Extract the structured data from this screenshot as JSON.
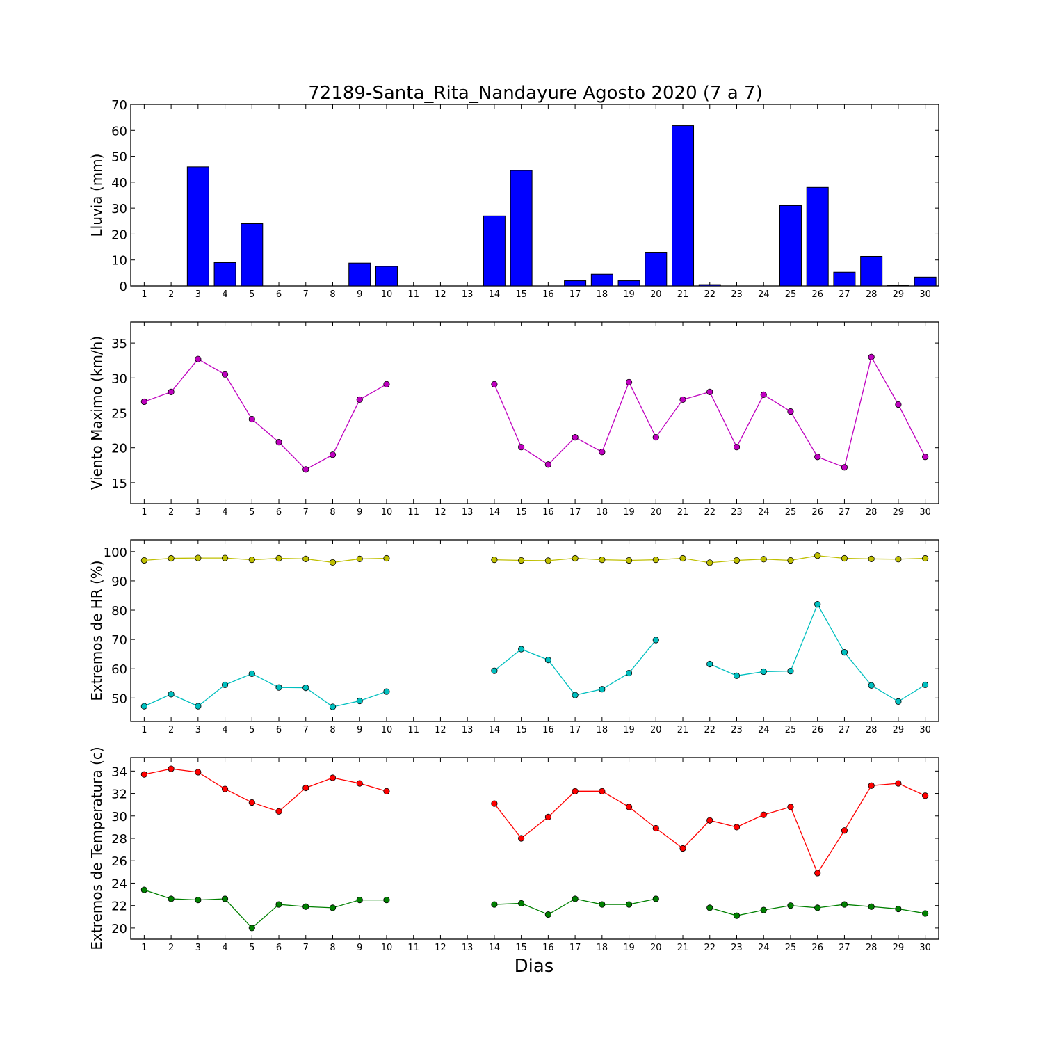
{
  "title": "72189-Santa_Rita_Nandayure Agosto 2020  (7 a 7)",
  "xlabel": "Dias",
  "chart_data": [
    {
      "type": "bar",
      "ylabel": "Lluvia (mm)",
      "ylim": [
        0,
        70
      ],
      "yticks": [
        0,
        10,
        20,
        30,
        40,
        50,
        60,
        70
      ],
      "categories": [
        1,
        2,
        3,
        4,
        5,
        6,
        7,
        8,
        9,
        10,
        11,
        12,
        13,
        14,
        15,
        16,
        17,
        18,
        19,
        20,
        21,
        22,
        23,
        24,
        25,
        26,
        27,
        28,
        29,
        30
      ],
      "series": [
        {
          "color": "#0000ff",
          "values": [
            0,
            0,
            45.9,
            9,
            24,
            0,
            0,
            0,
            8.8,
            7.5,
            0,
            0,
            0,
            27,
            44.5,
            0,
            2,
            4.5,
            2,
            13,
            61.8,
            0.5,
            0,
            0,
            31,
            38,
            5.3,
            11.4,
            0.2,
            3.4
          ]
        }
      ]
    },
    {
      "type": "line",
      "ylabel": "Viento Maximo (km/h)",
      "ylim": [
        12,
        38
      ],
      "yticks": [
        15,
        20,
        25,
        30,
        35
      ],
      "x": [
        1,
        2,
        3,
        4,
        5,
        6,
        7,
        8,
        9,
        10,
        11,
        12,
        13,
        14,
        15,
        16,
        17,
        18,
        19,
        20,
        21,
        22,
        23,
        24,
        25,
        26,
        27,
        28,
        29,
        30
      ],
      "series": [
        {
          "color": "#bf00bf",
          "values": [
            26.6,
            28,
            32.7,
            30.5,
            24.1,
            20.8,
            16.9,
            19,
            26.9,
            29.1,
            null,
            null,
            null,
            29.1,
            20.1,
            17.6,
            21.5,
            19.4,
            29.4,
            21.5,
            26.9,
            28,
            20.1,
            27.6,
            25.2,
            18.7,
            17.2,
            33,
            26.2,
            18.7
          ]
        }
      ]
    },
    {
      "type": "line",
      "ylabel": "Extremos de HR (%)",
      "ylim": [
        42,
        104
      ],
      "yticks": [
        50,
        60,
        70,
        80,
        90,
        100
      ],
      "x": [
        1,
        2,
        3,
        4,
        5,
        6,
        7,
        8,
        9,
        10,
        11,
        12,
        13,
        14,
        15,
        16,
        17,
        18,
        19,
        20,
        21,
        22,
        23,
        24,
        25,
        26,
        27,
        28,
        29,
        30
      ],
      "series": [
        {
          "color": "#bfbf00",
          "values": [
            97,
            97.7,
            97.8,
            97.8,
            97.2,
            97.7,
            97.5,
            96.3,
            97.5,
            97.7,
            null,
            null,
            null,
            97.2,
            97,
            96.9,
            97.7,
            97.2,
            97,
            97.2,
            97.7,
            96.2,
            97,
            97.4,
            97,
            98.6,
            97.7,
            97.5,
            97.4,
            97.7
          ]
        },
        {
          "color": "#00bfbf",
          "values": [
            47.2,
            51.3,
            47.2,
            54.5,
            58.3,
            53.6,
            53.5,
            47,
            49,
            52.2,
            null,
            null,
            null,
            59.3,
            66.7,
            63,
            51,
            53,
            58.5,
            69.8,
            null,
            61.6,
            57.6,
            59,
            59.2,
            82,
            65.6,
            54.3,
            48.8,
            54.5
          ]
        }
      ]
    },
    {
      "type": "line",
      "ylabel": "Extremos de Temperatura (c)",
      "ylim": [
        19,
        35.2
      ],
      "yticks": [
        20,
        22,
        24,
        26,
        28,
        30,
        32,
        34
      ],
      "x": [
        1,
        2,
        3,
        4,
        5,
        6,
        7,
        8,
        9,
        10,
        11,
        12,
        13,
        14,
        15,
        16,
        17,
        18,
        19,
        20,
        21,
        22,
        23,
        24,
        25,
        26,
        27,
        28,
        29,
        30
      ],
      "series": [
        {
          "color": "#ff0000",
          "values": [
            33.7,
            34.2,
            33.9,
            32.4,
            31.2,
            30.4,
            32.5,
            33.4,
            32.9,
            32.2,
            null,
            null,
            null,
            31.1,
            28,
            29.9,
            32.2,
            32.2,
            30.8,
            28.9,
            27.1,
            29.6,
            29,
            30.1,
            30.8,
            24.9,
            28.7,
            32.7,
            32.9,
            31.8
          ]
        },
        {
          "color": "#008000",
          "values": [
            23.4,
            22.6,
            22.5,
            22.6,
            20,
            22.1,
            21.9,
            21.8,
            22.5,
            22.5,
            null,
            null,
            null,
            22.1,
            22.2,
            21.2,
            22.6,
            22.1,
            22.1,
            22.6,
            null,
            21.8,
            21.1,
            21.6,
            22,
            21.8,
            22.1,
            21.9,
            21.7,
            21.3
          ]
        }
      ]
    }
  ]
}
